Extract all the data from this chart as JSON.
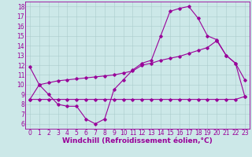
{
  "xlabel": "Windchill (Refroidissement éolien,°C)",
  "background_color": "#cce8e8",
  "line_color": "#990099",
  "xlim": [
    -0.5,
    23.5
  ],
  "ylim": [
    5.5,
    18.5
  ],
  "xticks": [
    0,
    1,
    2,
    3,
    4,
    5,
    6,
    7,
    8,
    9,
    10,
    11,
    12,
    13,
    14,
    15,
    16,
    17,
    18,
    19,
    20,
    21,
    22,
    23
  ],
  "yticks": [
    6,
    7,
    8,
    9,
    10,
    11,
    12,
    13,
    14,
    15,
    16,
    17,
    18
  ],
  "line1_x": [
    0,
    1,
    2,
    3,
    4,
    5,
    6,
    7,
    8,
    9,
    10,
    11,
    12,
    13,
    14,
    15,
    16,
    17,
    18,
    19,
    20,
    21,
    22,
    23
  ],
  "line1_y": [
    11.8,
    10.0,
    9.0,
    8.0,
    7.8,
    7.8,
    6.5,
    6.0,
    6.5,
    9.5,
    10.5,
    11.5,
    12.2,
    12.5,
    15.0,
    17.5,
    17.8,
    18.0,
    16.8,
    15.0,
    14.6,
    13.0,
    12.2,
    10.5
  ],
  "line2_x": [
    0,
    1,
    2,
    3,
    4,
    5,
    6,
    7,
    8,
    9,
    10,
    11,
    12,
    13,
    14,
    15,
    16,
    17,
    18,
    19,
    20,
    21,
    22,
    23
  ],
  "line2_y": [
    8.5,
    10.0,
    10.2,
    10.4,
    10.5,
    10.6,
    10.7,
    10.8,
    10.9,
    11.0,
    11.2,
    11.4,
    12.0,
    12.2,
    12.5,
    12.7,
    12.9,
    13.2,
    13.5,
    13.8,
    14.5,
    13.0,
    12.2,
    8.8
  ],
  "line3_x": [
    0,
    1,
    2,
    3,
    4,
    5,
    6,
    7,
    8,
    9,
    10,
    11,
    12,
    13,
    14,
    15,
    16,
    17,
    18,
    19,
    20,
    21,
    22,
    23
  ],
  "line3_y": [
    8.5,
    8.5,
    8.5,
    8.5,
    8.5,
    8.5,
    8.5,
    8.5,
    8.5,
    8.5,
    8.5,
    8.5,
    8.5,
    8.5,
    8.5,
    8.5,
    8.5,
    8.5,
    8.5,
    8.5,
    8.5,
    8.5,
    8.5,
    8.8
  ],
  "grid_color": "#aacccc",
  "marker": "D",
  "markersize": 1.8,
  "linewidth": 0.8,
  "xlabel_fontsize": 6.5,
  "tick_fontsize": 5.5
}
